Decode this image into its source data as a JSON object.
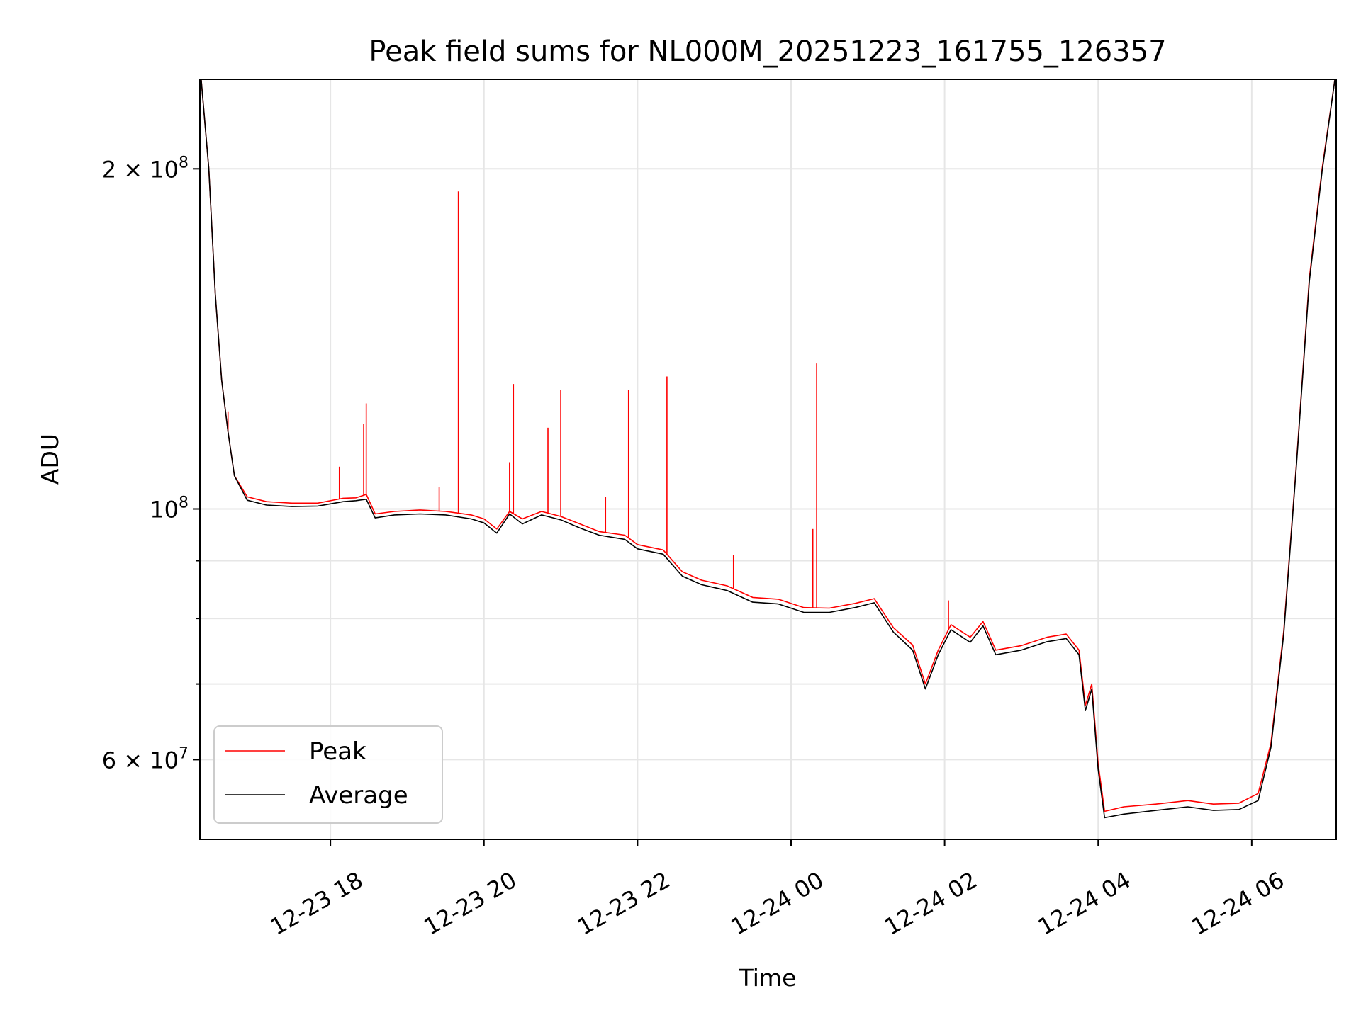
{
  "chart_data": {
    "type": "line",
    "title": "Peak field sums for NL000M_20251223_161755_126357",
    "xlabel": "Time",
    "ylabel": "ADU",
    "yscale": "log",
    "ylim": [
      51000000,
      240000000
    ],
    "xlim": [
      "2025-12-23 16:18",
      "2025-12-24 07:06"
    ],
    "grid": true,
    "legend_position": "lower-left",
    "x_ticks": [
      {
        "t": "2025-12-23 18:00",
        "label": "12-23 18"
      },
      {
        "t": "2025-12-23 20:00",
        "label": "12-23 20"
      },
      {
        "t": "2025-12-23 22:00",
        "label": "12-23 22"
      },
      {
        "t": "2025-12-24 00:00",
        "label": "12-24 00"
      },
      {
        "t": "2025-12-24 02:00",
        "label": "12-24 02"
      },
      {
        "t": "2025-12-24 04:00",
        "label": "12-24 04"
      },
      {
        "t": "2025-12-24 06:00",
        "label": "12-24 06"
      }
    ],
    "y_major_ticks": [
      {
        "v": 60000000,
        "base": "6 × 10",
        "exp": "7"
      },
      {
        "v": 100000000,
        "base": "10",
        "exp": "8"
      },
      {
        "v": 200000000,
        "base": "2 × 10",
        "exp": "8"
      }
    ],
    "y_minor_ticks": [
      70000000,
      80000000,
      90000000
    ],
    "series": [
      {
        "name": "Peak",
        "color": "#ff0000",
        "points": [
          [
            "2025-12-23 16:19",
            240000000
          ],
          [
            "2025-12-23 16:25",
            200000000
          ],
          [
            "2025-12-23 16:30",
            155000000
          ],
          [
            "2025-12-23 16:35",
            130000000
          ],
          [
            "2025-12-23 16:40",
            117000000
          ],
          [
            "2025-12-23 16:45",
            107000000
          ],
          [
            "2025-12-23 16:55",
            102500000
          ],
          [
            "2025-12-23 17:10",
            101500000
          ],
          [
            "2025-12-23 17:30",
            101200000
          ],
          [
            "2025-12-23 17:50",
            101200000
          ],
          [
            "2025-12-23 18:10",
            102200000
          ],
          [
            "2025-12-23 18:20",
            102300000
          ],
          [
            "2025-12-23 18:28",
            103000000
          ],
          [
            "2025-12-23 18:35",
            99000000
          ],
          [
            "2025-12-23 18:50",
            99500000
          ],
          [
            "2025-12-23 19:10",
            99800000
          ],
          [
            "2025-12-23 19:30",
            99500000
          ],
          [
            "2025-12-23 19:50",
            98800000
          ],
          [
            "2025-12-23 20:00",
            98000000
          ],
          [
            "2025-12-23 20:10",
            96000000
          ],
          [
            "2025-12-23 20:20",
            99500000
          ],
          [
            "2025-12-23 20:30",
            98000000
          ],
          [
            "2025-12-23 20:45",
            99500000
          ],
          [
            "2025-12-23 21:00",
            98500000
          ],
          [
            "2025-12-23 21:15",
            97000000
          ],
          [
            "2025-12-23 21:30",
            95500000
          ],
          [
            "2025-12-23 21:50",
            94800000
          ],
          [
            "2025-12-23 22:00",
            93000000
          ],
          [
            "2025-12-23 22:20",
            92000000
          ],
          [
            "2025-12-23 22:35",
            88000000
          ],
          [
            "2025-12-23 22:50",
            86500000
          ],
          [
            "2025-12-23 23:10",
            85500000
          ],
          [
            "2025-12-23 23:30",
            83500000
          ],
          [
            "2025-12-23 23:50",
            83200000
          ],
          [
            "2025-12-24 00:10",
            81800000
          ],
          [
            "2025-12-24 00:30",
            81700000
          ],
          [
            "2025-12-24 00:50",
            82500000
          ],
          [
            "2025-12-24 01:05",
            83300000
          ],
          [
            "2025-12-24 01:20",
            78500000
          ],
          [
            "2025-12-24 01:35",
            75800000
          ],
          [
            "2025-12-24 01:45",
            70000000
          ],
          [
            "2025-12-24 01:55",
            75000000
          ],
          [
            "2025-12-24 02:05",
            79000000
          ],
          [
            "2025-12-24 02:20",
            77000000
          ],
          [
            "2025-12-24 02:30",
            79500000
          ],
          [
            "2025-12-24 02:40",
            75000000
          ],
          [
            "2025-12-24 03:00",
            75700000
          ],
          [
            "2025-12-24 03:20",
            77000000
          ],
          [
            "2025-12-24 03:35",
            77500000
          ],
          [
            "2025-12-24 03:45",
            75000000
          ],
          [
            "2025-12-24 03:50",
            67000000
          ],
          [
            "2025-12-24 03:55",
            70000000
          ],
          [
            "2025-12-24 04:00",
            59500000
          ],
          [
            "2025-12-24 04:05",
            54000000
          ],
          [
            "2025-12-24 04:20",
            54500000
          ],
          [
            "2025-12-24 04:45",
            54800000
          ],
          [
            "2025-12-24 05:10",
            55200000
          ],
          [
            "2025-12-24 05:30",
            54800000
          ],
          [
            "2025-12-24 05:50",
            54900000
          ],
          [
            "2025-12-24 06:05",
            56000000
          ],
          [
            "2025-12-24 06:15",
            62000000
          ],
          [
            "2025-12-24 06:25",
            78000000
          ],
          [
            "2025-12-24 06:35",
            110000000
          ],
          [
            "2025-12-24 06:45",
            160000000
          ],
          [
            "2025-12-24 06:55",
            200000000
          ],
          [
            "2025-12-24 07:05",
            240000000
          ]
        ],
        "spikes": [
          [
            "2025-12-23 16:40",
            122000000
          ],
          [
            "2025-12-23 18:07",
            109000000
          ],
          [
            "2025-12-23 18:26",
            119000000
          ],
          [
            "2025-12-23 18:28",
            124000000
          ],
          [
            "2025-12-23 19:25",
            104500000
          ],
          [
            "2025-12-23 19:40",
            191000000
          ],
          [
            "2025-12-23 20:20",
            110000000
          ],
          [
            "2025-12-23 20:23",
            129000000
          ],
          [
            "2025-12-23 20:50",
            118000000
          ],
          [
            "2025-12-23 21:00",
            127500000
          ],
          [
            "2025-12-23 21:35",
            102500000
          ],
          [
            "2025-12-23 21:53",
            127500000
          ],
          [
            "2025-12-23 22:23",
            131000000
          ],
          [
            "2025-12-23 23:15",
            91000000
          ],
          [
            "2025-12-24 00:17",
            96000000
          ],
          [
            "2025-12-24 00:20",
            134500000
          ],
          [
            "2025-12-24 02:03",
            83000000
          ]
        ]
      },
      {
        "name": "Average",
        "color": "#000000",
        "points": [
          [
            "2025-12-23 16:19",
            240000000
          ],
          [
            "2025-12-23 16:25",
            200000000
          ],
          [
            "2025-12-23 16:30",
            155000000
          ],
          [
            "2025-12-23 16:35",
            130000000
          ],
          [
            "2025-12-23 16:40",
            117000000
          ],
          [
            "2025-12-23 16:45",
            107000000
          ],
          [
            "2025-12-23 16:55",
            101800000
          ],
          [
            "2025-12-23 17:10",
            100800000
          ],
          [
            "2025-12-23 17:30",
            100500000
          ],
          [
            "2025-12-23 17:50",
            100600000
          ],
          [
            "2025-12-23 18:10",
            101500000
          ],
          [
            "2025-12-23 18:20",
            101700000
          ],
          [
            "2025-12-23 18:28",
            102000000
          ],
          [
            "2025-12-23 18:35",
            98200000
          ],
          [
            "2025-12-23 18:50",
            98800000
          ],
          [
            "2025-12-23 19:10",
            99000000
          ],
          [
            "2025-12-23 19:30",
            98800000
          ],
          [
            "2025-12-23 19:50",
            98000000
          ],
          [
            "2025-12-23 20:00",
            97200000
          ],
          [
            "2025-12-23 20:10",
            95200000
          ],
          [
            "2025-12-23 20:20",
            99000000
          ],
          [
            "2025-12-23 20:30",
            97000000
          ],
          [
            "2025-12-23 20:45",
            98800000
          ],
          [
            "2025-12-23 21:00",
            97800000
          ],
          [
            "2025-12-23 21:15",
            96200000
          ],
          [
            "2025-12-23 21:30",
            94800000
          ],
          [
            "2025-12-23 21:50",
            94000000
          ],
          [
            "2025-12-23 22:00",
            92200000
          ],
          [
            "2025-12-23 22:20",
            91200000
          ],
          [
            "2025-12-23 22:35",
            87200000
          ],
          [
            "2025-12-23 22:50",
            85700000
          ],
          [
            "2025-12-23 23:10",
            84700000
          ],
          [
            "2025-12-23 23:30",
            82700000
          ],
          [
            "2025-12-23 23:50",
            82400000
          ],
          [
            "2025-12-24 00:10",
            81000000
          ],
          [
            "2025-12-24 00:30",
            81000000
          ],
          [
            "2025-12-24 00:50",
            81800000
          ],
          [
            "2025-12-24 01:05",
            82600000
          ],
          [
            "2025-12-24 01:20",
            77800000
          ],
          [
            "2025-12-24 01:35",
            75000000
          ],
          [
            "2025-12-24 01:45",
            69300000
          ],
          [
            "2025-12-24 01:55",
            74300000
          ],
          [
            "2025-12-24 02:05",
            78200000
          ],
          [
            "2025-12-24 02:20",
            76200000
          ],
          [
            "2025-12-24 02:30",
            78800000
          ],
          [
            "2025-12-24 02:40",
            74300000
          ],
          [
            "2025-12-24 03:00",
            75000000
          ],
          [
            "2025-12-24 03:20",
            76300000
          ],
          [
            "2025-12-24 03:35",
            76800000
          ],
          [
            "2025-12-24 03:45",
            74300000
          ],
          [
            "2025-12-24 03:50",
            66300000
          ],
          [
            "2025-12-24 03:55",
            69300000
          ],
          [
            "2025-12-24 04:00",
            58800000
          ],
          [
            "2025-12-24 04:05",
            53300000
          ],
          [
            "2025-12-24 04:20",
            53700000
          ],
          [
            "2025-12-24 04:45",
            54100000
          ],
          [
            "2025-12-24 05:10",
            54500000
          ],
          [
            "2025-12-24 05:30",
            54100000
          ],
          [
            "2025-12-24 05:50",
            54200000
          ],
          [
            "2025-12-24 06:05",
            55200000
          ],
          [
            "2025-12-24 06:15",
            61500000
          ],
          [
            "2025-12-24 06:25",
            77500000
          ],
          [
            "2025-12-24 06:35",
            109500000
          ],
          [
            "2025-12-24 06:45",
            159000000
          ],
          [
            "2025-12-24 06:55",
            199000000
          ],
          [
            "2025-12-24 07:05",
            240000000
          ]
        ]
      }
    ]
  }
}
